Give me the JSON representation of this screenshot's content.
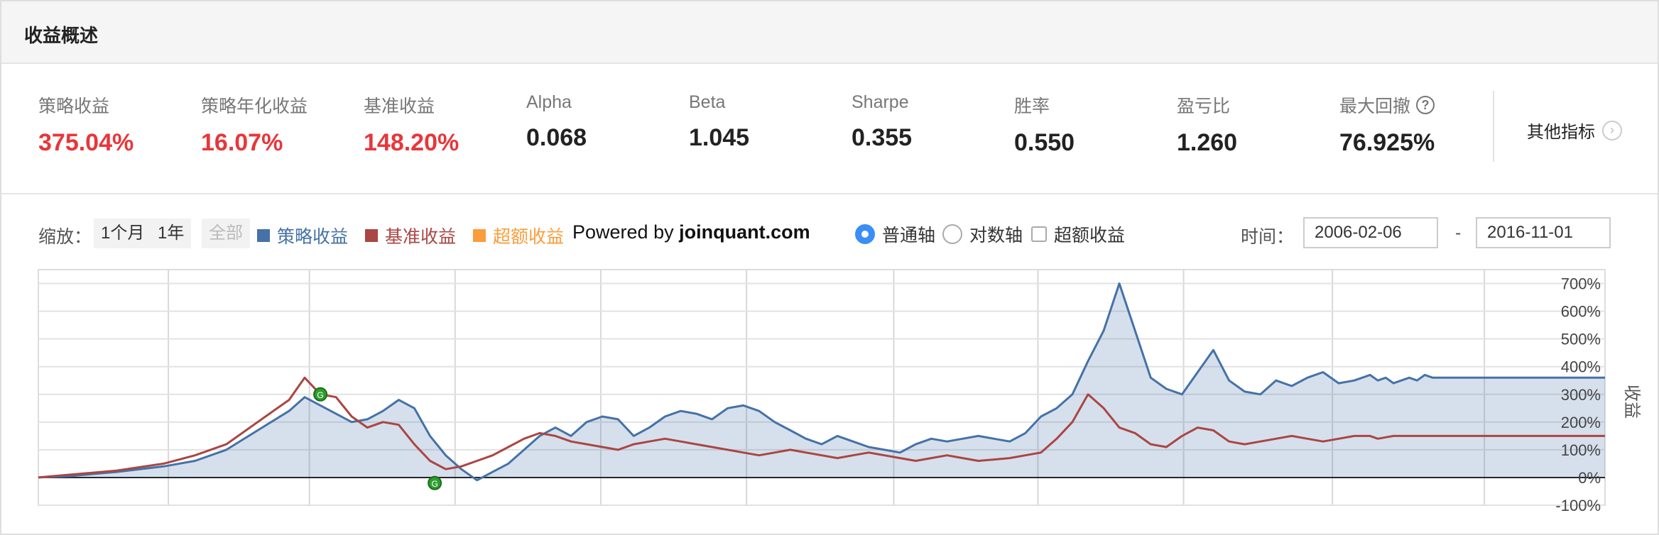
{
  "header": {
    "title": "收益概述"
  },
  "stats": [
    {
      "label": "策略收益",
      "value": "375.04%",
      "color": "red"
    },
    {
      "label": "策略年化收益",
      "value": "16.07%",
      "color": "red"
    },
    {
      "label": "基准收益",
      "value": "148.20%",
      "color": "red"
    },
    {
      "label": "Alpha",
      "value": "0.068",
      "color": "black"
    },
    {
      "label": "Beta",
      "value": "1.045",
      "color": "black"
    },
    {
      "label": "Sharpe",
      "value": "0.355",
      "color": "black"
    },
    {
      "label": "胜率",
      "value": "0.550",
      "color": "black"
    },
    {
      "label": "盈亏比",
      "value": "1.260",
      "color": "black"
    },
    {
      "label": "最大回撤",
      "value": "76.925%",
      "color": "black",
      "help": "?"
    }
  ],
  "more_metrics": {
    "label": "其他指标",
    "icon": "chevron-right-icon",
    "arrow": "›"
  },
  "toolbar": {
    "zoom_label": "缩放：",
    "zoom_buttons": [
      "1个月",
      "1年",
      "全部"
    ],
    "legend": [
      {
        "label": "策略收益",
        "color": "#4572a7"
      },
      {
        "label": "基准收益",
        "color": "#aa4643"
      },
      {
        "label": "超额收益",
        "color": "#fa9d3a"
      }
    ],
    "powered_prefix": "Powered by ",
    "powered_site": "joinquant.com",
    "axis_options": [
      "普通轴",
      "对数轴"
    ],
    "axis_selected": "普通轴",
    "excess_checkbox_label": "超额收益",
    "excess_checked": false,
    "time_label": "时间：",
    "date_from": "2006-02-06",
    "date_separator": "-",
    "date_to": "2016-11-01"
  },
  "chart_data": {
    "type": "area",
    "x_range": [
      "2006-02-06",
      "2016-11-01"
    ],
    "ylabel": "收益",
    "ylim": [
      -100,
      750
    ],
    "y_ticks": [
      -100,
      0,
      100,
      200,
      300,
      400,
      500,
      600,
      700
    ],
    "y_tick_labels": [
      "-100%",
      "0%",
      "100%",
      "200%",
      "300%",
      "400%",
      "500%",
      "600%",
      "700%"
    ],
    "grid": true,
    "series": [
      {
        "name": "策略收益",
        "color": "#4572a7",
        "fill": "rgba(69,114,167,0.22)",
        "t": [
          0,
          0.02,
          0.05,
          0.08,
          0.1,
          0.12,
          0.14,
          0.16,
          0.17,
          0.18,
          0.19,
          0.2,
          0.21,
          0.22,
          0.23,
          0.24,
          0.25,
          0.26,
          0.27,
          0.28,
          0.29,
          0.3,
          0.31,
          0.32,
          0.33,
          0.34,
          0.35,
          0.36,
          0.37,
          0.38,
          0.39,
          0.4,
          0.41,
          0.42,
          0.43,
          0.44,
          0.45,
          0.46,
          0.47,
          0.48,
          0.49,
          0.5,
          0.51,
          0.52,
          0.53,
          0.54,
          0.55,
          0.56,
          0.57,
          0.58,
          0.59,
          0.6,
          0.61,
          0.62,
          0.63,
          0.64,
          0.65,
          0.66,
          0.67,
          0.68,
          0.69,
          0.7,
          0.71,
          0.72,
          0.73,
          0.74,
          0.75,
          0.76,
          0.77,
          0.78,
          0.79,
          0.8,
          0.81,
          0.82,
          0.83,
          0.84,
          0.85,
          0.855,
          0.86,
          0.865,
          0.87,
          0.875,
          0.88,
          0.885,
          0.89,
          0.9,
          0.91,
          0.92,
          0.93,
          0.94,
          0.95,
          0.96,
          0.97,
          0.98,
          0.99,
          1.0
        ],
        "values": [
          0,
          5,
          20,
          40,
          60,
          100,
          170,
          240,
          290,
          260,
          230,
          200,
          210,
          240,
          280,
          250,
          150,
          80,
          30,
          -10,
          20,
          50,
          100,
          150,
          180,
          150,
          200,
          220,
          210,
          150,
          180,
          220,
          240,
          230,
          210,
          250,
          260,
          240,
          200,
          170,
          140,
          120,
          150,
          130,
          110,
          100,
          90,
          120,
          140,
          130,
          140,
          150,
          140,
          130,
          160,
          220,
          250,
          300,
          420,
          530,
          700,
          530,
          360,
          320,
          300,
          380,
          460,
          350,
          310,
          300,
          350,
          330,
          360,
          380,
          340,
          350,
          370,
          350,
          360,
          340,
          350,
          360,
          350,
          370,
          360,
          360,
          360,
          360,
          360,
          360,
          360,
          360,
          360,
          360,
          360,
          360
        ]
      },
      {
        "name": "基准收益",
        "color": "#aa4643",
        "t": [
          0,
          0.02,
          0.05,
          0.08,
          0.1,
          0.12,
          0.14,
          0.16,
          0.17,
          0.18,
          0.19,
          0.2,
          0.21,
          0.22,
          0.23,
          0.24,
          0.25,
          0.26,
          0.27,
          0.28,
          0.29,
          0.3,
          0.31,
          0.32,
          0.33,
          0.34,
          0.35,
          0.36,
          0.37,
          0.38,
          0.39,
          0.4,
          0.41,
          0.42,
          0.43,
          0.44,
          0.45,
          0.46,
          0.47,
          0.48,
          0.49,
          0.5,
          0.51,
          0.52,
          0.53,
          0.54,
          0.55,
          0.56,
          0.57,
          0.58,
          0.59,
          0.6,
          0.61,
          0.62,
          0.63,
          0.64,
          0.65,
          0.66,
          0.67,
          0.68,
          0.69,
          0.7,
          0.71,
          0.72,
          0.73,
          0.74,
          0.75,
          0.76,
          0.77,
          0.78,
          0.79,
          0.8,
          0.81,
          0.82,
          0.83,
          0.84,
          0.85,
          0.855,
          0.86,
          0.865,
          0.87,
          0.875,
          0.88,
          0.885,
          0.89,
          0.9,
          0.91,
          0.92,
          0.93,
          0.94,
          0.95,
          0.96,
          0.97,
          0.98,
          0.99,
          1.0
        ],
        "values": [
          0,
          10,
          25,
          50,
          80,
          120,
          200,
          280,
          360,
          300,
          290,
          220,
          180,
          200,
          190,
          120,
          60,
          30,
          40,
          60,
          80,
          110,
          140,
          160,
          150,
          130,
          120,
          110,
          100,
          120,
          130,
          140,
          130,
          120,
          110,
          100,
          90,
          80,
          90,
          100,
          90,
          80,
          70,
          80,
          90,
          80,
          70,
          60,
          70,
          80,
          70,
          60,
          65,
          70,
          80,
          90,
          140,
          200,
          300,
          250,
          180,
          160,
          120,
          110,
          150,
          180,
          170,
          130,
          120,
          130,
          140,
          150,
          140,
          130,
          140,
          150,
          150,
          140,
          145,
          150,
          150,
          150,
          150,
          150,
          150,
          150,
          150,
          150,
          150,
          150,
          150,
          150,
          150,
          150,
          150,
          150
        ]
      }
    ],
    "annotations": [
      {
        "label": "G",
        "x": 0.18,
        "series": "策略收益",
        "value": 300
      },
      {
        "label": "G",
        "x": 0.253,
        "series": "策略收益",
        "value": -20
      }
    ]
  }
}
